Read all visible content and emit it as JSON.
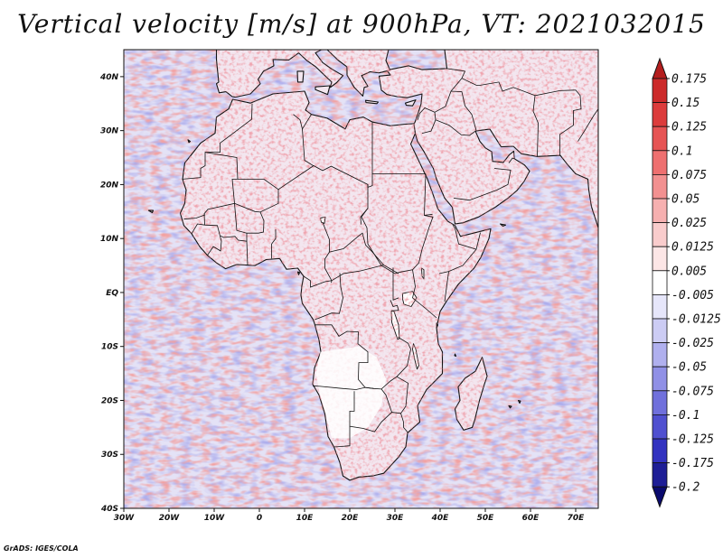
{
  "title": "Vertical velocity [m/s] at 900hPa, VT: 2021032015",
  "credit": "GrADS: IGES/COLA",
  "map": {
    "lat_ticks": [
      "40N",
      "30N",
      "20N",
      "10N",
      "EQ",
      "10S",
      "20S",
      "30S",
      "40S"
    ],
    "lon_ticks": [
      "30W",
      "20W",
      "10W",
      "0",
      "10E",
      "20E",
      "30E",
      "40E",
      "50E",
      "60E",
      "70E"
    ],
    "lon_range": [
      -30,
      75
    ],
    "lat_range": [
      -40,
      45
    ],
    "field_colors": {
      "ocean_base": "#e4e2f6",
      "updraft": "#e46060",
      "downdraft": "#6a6ad6",
      "land_base": "#f1e5ee",
      "coast": "#111111"
    }
  },
  "colorbar": {
    "labels": [
      "0.175",
      "0.15",
      "0.125",
      "0.1",
      "0.075",
      "0.05",
      "0.025",
      "0.0125",
      "0.005",
      "-0.005",
      "-0.0125",
      "-0.025",
      "-0.05",
      "-0.075",
      "-0.1",
      "-0.125",
      "-0.175",
      "-0.2"
    ],
    "colors": [
      "#b41e1e",
      "#cc2a2a",
      "#dc3c3c",
      "#e65454",
      "#ee7070",
      "#f29090",
      "#f6b0b0",
      "#f9cccc",
      "#fce6e6",
      "#ffffff",
      "#e6e6fa",
      "#ccccf4",
      "#b0b0ee",
      "#9090e6",
      "#7070dc",
      "#5050d0",
      "#3232c0",
      "#1e1e96",
      "#0a0a6e"
    ]
  }
}
